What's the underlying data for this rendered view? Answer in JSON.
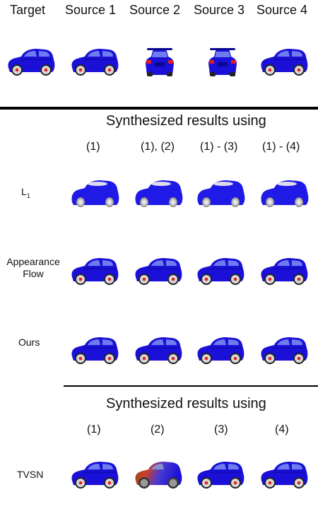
{
  "header": {
    "target": "Target",
    "sources": [
      "Source 1",
      "Source 2",
      "Source 3",
      "Source 4"
    ]
  },
  "section1": {
    "title": "Synthesized results using",
    "columns": [
      "(1)",
      "(1), (2)",
      "(1) - (3)",
      "(1) - (4)"
    ],
    "rows": [
      {
        "label_main": "L",
        "label_sub": "1"
      },
      {
        "label_line1": "Appearance",
        "label_line2": "Flow"
      },
      {
        "label": "Ours"
      }
    ]
  },
  "section2": {
    "title": "Synthesized results using",
    "columns": [
      "(1)",
      "(2)",
      "(3)",
      "(4)"
    ],
    "row_label": "TVSN"
  },
  "colors": {
    "car_body": "#1a10d8",
    "car_dark": "#0a0890",
    "l1_body": "#1f1ae6",
    "glass": "#6f7cf0",
    "wheel_rim": "#d8d8d8",
    "brake": "#e02020"
  },
  "icons": [
    "car-side-icon",
    "car-rear-icon",
    "car-rear-three-quarter-icon",
    "car-blurry-icon"
  ]
}
